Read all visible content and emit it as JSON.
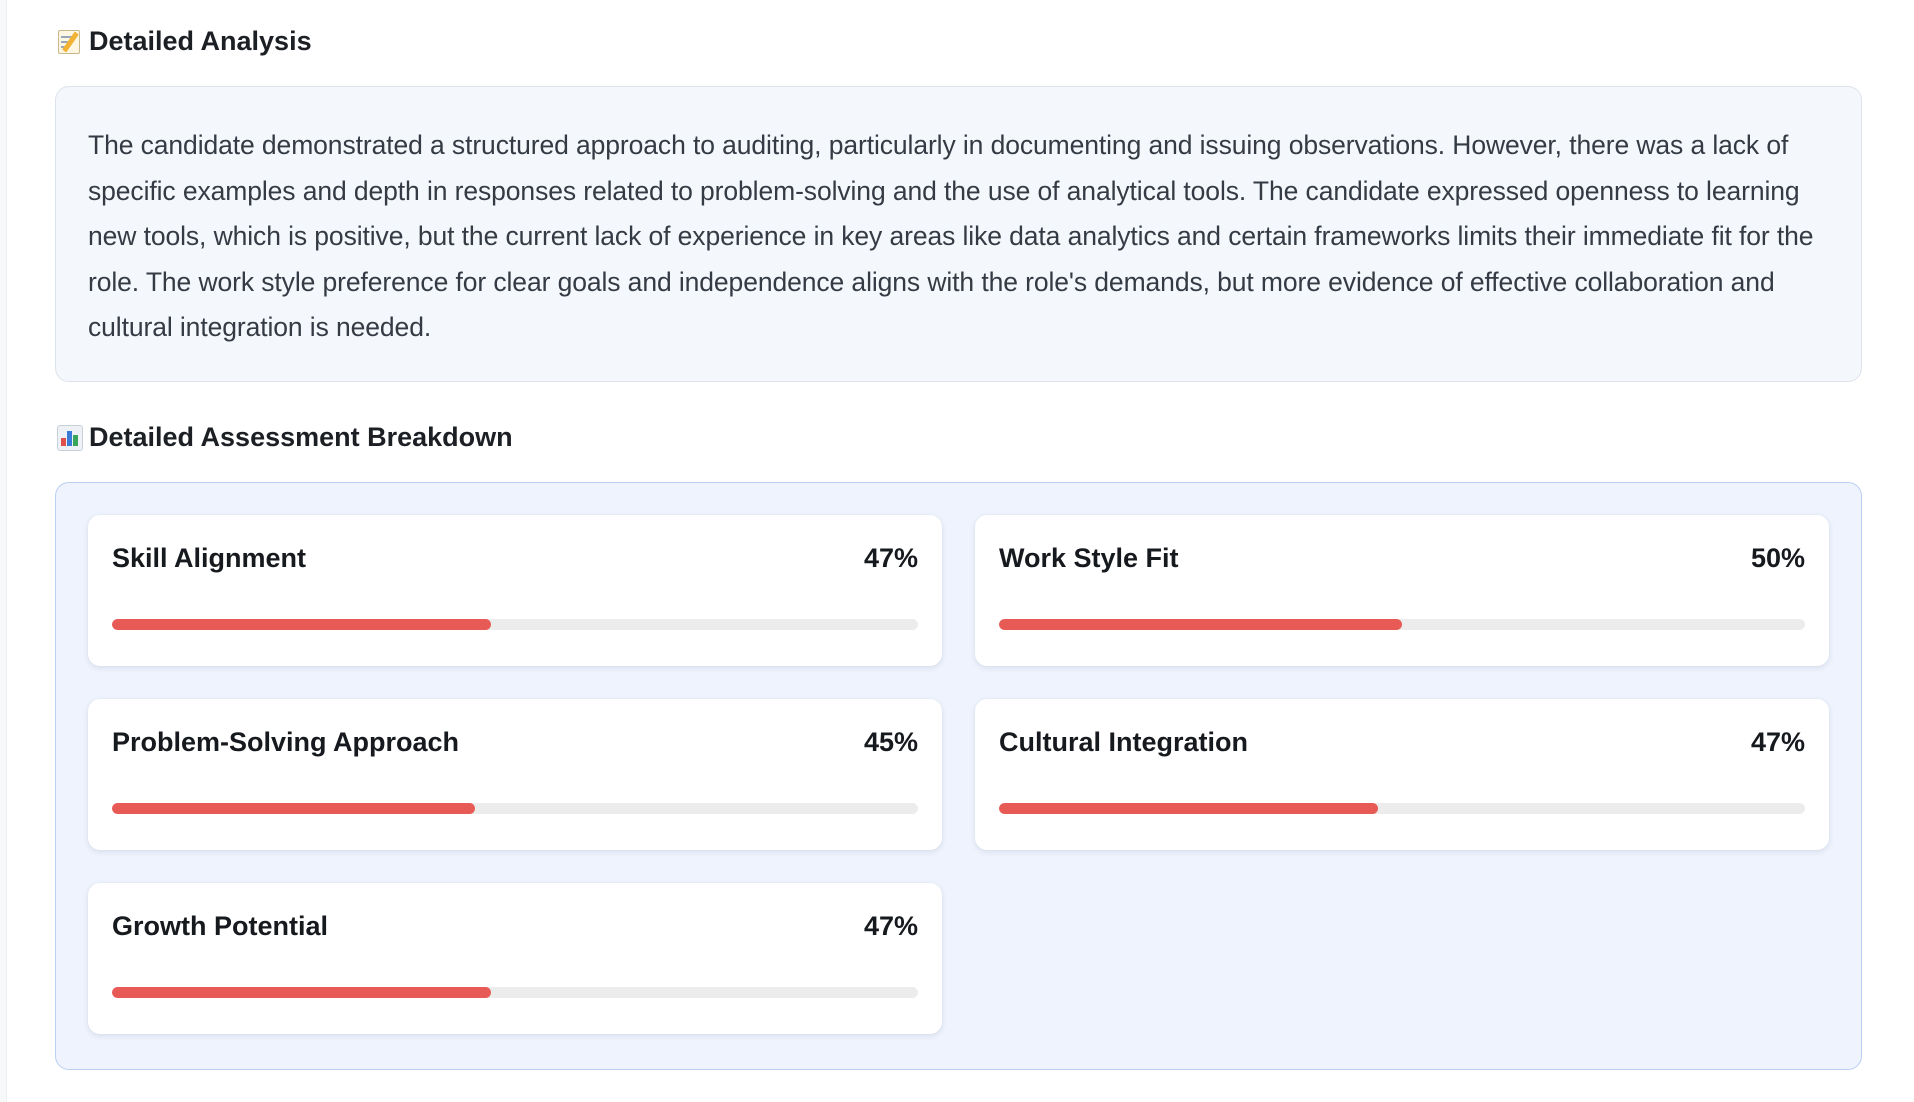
{
  "analysis": {
    "heading": "Detailed Analysis",
    "heading_icon": "memo-icon",
    "text": "The candidate demonstrated a structured approach to auditing, particularly in documenting and issuing observations. However, there was a lack of specific examples and depth in responses related to problem-solving and the use of analytical tools. The candidate expressed openness to learning new tools, which is positive, but the current lack of experience in key areas like data analytics and certain frameworks limits their immediate fit for the role. The work style preference for clear goals and independence aligns with the role's demands, but more evidence of effective collaboration and cultural integration is needed."
  },
  "breakdown": {
    "heading": "Detailed Assessment Breakdown",
    "heading_icon": "bar-chart-icon",
    "bar_color": "#e85a55",
    "metrics": [
      {
        "name": "Skill Alignment",
        "value": "47%",
        "percent": 47
      },
      {
        "name": "Work Style Fit",
        "value": "50%",
        "percent": 50
      },
      {
        "name": "Problem-Solving Approach",
        "value": "45%",
        "percent": 45
      },
      {
        "name": "Cultural Integration",
        "value": "47%",
        "percent": 47
      },
      {
        "name": "Growth Potential",
        "value": "47%",
        "percent": 47
      }
    ]
  }
}
